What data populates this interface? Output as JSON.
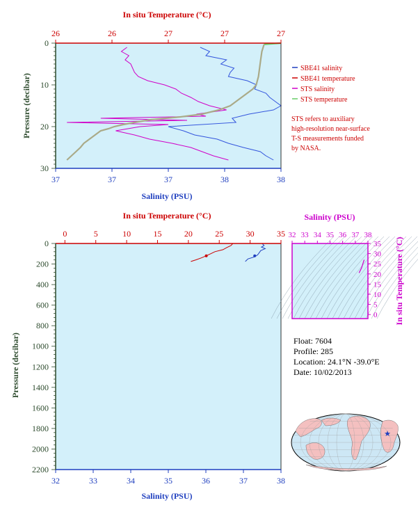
{
  "chart_data": [
    {
      "type": "line",
      "top_axis_title": "In situ Temperature (°C)",
      "top_ticks": [
        "26",
        "26",
        "27",
        "27",
        "27"
      ],
      "bottom_axis_title": "Salinity (PSU)",
      "bottom_ticks": [
        "37",
        "37",
        "37",
        "38",
        "38"
      ],
      "ylabel": "Pressure (decibar)",
      "y_ticks": [
        "0",
        "10",
        "20",
        "30"
      ],
      "ylim": [
        30,
        0
      ],
      "salinity_range": [
        36.8,
        38.0
      ],
      "temperature_range": [
        25.8,
        27.8
      ],
      "legend": [
        {
          "name": "SBE41 salinity",
          "color": "#1f3fbf"
        },
        {
          "name": "SBE41 temperature",
          "color": "#cc0000"
        },
        {
          "name": "STS salinity",
          "color": "#d000c8"
        },
        {
          "name": "STS temperature",
          "color": "#66cc66"
        }
      ],
      "note": [
        "STS refers to auxiliary",
        "high-resolution near-surface",
        "T-S measurements funded",
        "by NASA."
      ],
      "series": [
        {
          "name": "SBE41 salinity",
          "color": "#3355dd",
          "pressure": [
            1,
            2,
            3,
            4,
            5,
            6,
            7,
            8,
            9,
            10,
            11,
            12,
            13,
            14,
            15,
            16,
            17,
            18,
            19,
            20,
            21,
            22,
            23,
            24,
            25,
            26,
            27,
            28
          ],
          "values": [
            37.57,
            37.62,
            37.6,
            37.71,
            37.68,
            37.75,
            37.73,
            37.72,
            37.82,
            37.87,
            37.86,
            37.92,
            37.94,
            37.97,
            38.0,
            37.96,
            37.83,
            37.74,
            37.76,
            37.4,
            37.48,
            37.54,
            37.66,
            37.72,
            37.8,
            37.89,
            37.92,
            37.96
          ]
        },
        {
          "name": "STS salinity",
          "color": "#d000c8",
          "pressure": [
            1,
            2,
            3,
            4,
            5,
            6,
            7,
            8,
            9,
            10,
            11,
            12,
            13,
            14,
            15,
            16,
            17,
            17.5,
            18,
            18.5,
            19,
            19.5,
            20,
            21,
            22,
            23,
            24,
            25,
            26,
            27,
            28
          ],
          "values": [
            37.18,
            37.15,
            37.19,
            37.17,
            37.2,
            37.21,
            37.22,
            37.24,
            37.29,
            37.38,
            37.44,
            37.47,
            37.52,
            37.56,
            37.62,
            37.71,
            37.55,
            37.6,
            37.04,
            37.5,
            36.86,
            37.4,
            37.25,
            37.12,
            37.22,
            37.3,
            37.42,
            37.52,
            37.58,
            37.64,
            37.72
          ]
        },
        {
          "name": "STS temperature",
          "color": "#66cc66",
          "pressure": [
            0,
            0.3
          ],
          "values": [
            27.8,
            27.65
          ]
        },
        {
          "name": "SBE41 temperature",
          "color": "#aaaa88",
          "pressure": [
            0.3,
            2,
            4,
            6,
            8,
            10,
            11,
            12,
            13,
            14,
            15,
            16,
            17,
            17.7,
            18.3,
            19,
            19.5,
            20,
            20.5,
            21,
            22,
            23,
            24,
            25,
            26,
            27,
            28
          ],
          "values": [
            27.65,
            27.63,
            27.62,
            27.61,
            27.6,
            27.58,
            27.55,
            27.5,
            27.45,
            27.4,
            27.35,
            27.25,
            27.1,
            26.9,
            26.65,
            26.5,
            26.4,
            26.32,
            26.27,
            26.2,
            26.15,
            26.1,
            26.05,
            26.02,
            25.98,
            25.94,
            25.9
          ]
        }
      ]
    },
    {
      "type": "line",
      "top_axis_title": "In situ Temperature (°C)",
      "top_ticks": [
        "0",
        "5",
        "10",
        "15",
        "20",
        "25",
        "30",
        "35"
      ],
      "bottom_axis_title": "Salinity (PSU)",
      "bottom_ticks": [
        "32",
        "33",
        "34",
        "35",
        "36",
        "37",
        "38"
      ],
      "ylabel": "Pressure (decibar)",
      "y_ticks": [
        "0",
        "200",
        "400",
        "600",
        "800",
        "1000",
        "1200",
        "1400",
        "1600",
        "1800",
        "2000",
        "2200"
      ],
      "ylim": [
        2200,
        0
      ],
      "xlim_temperature": [
        -1.5,
        35
      ],
      "xlim_salinity": [
        32,
        38
      ],
      "series": [
        {
          "name": "temperature",
          "color": "#cc0000",
          "pressure": [
            0,
            20,
            40,
            60,
            80,
            100,
            120,
            140,
            160,
            175
          ],
          "values": [
            27.2,
            26.9,
            26.2,
            25.6,
            24.3,
            23.6,
            22.9,
            22.1,
            21.2,
            20.4
          ]
        },
        {
          "name": "salinity",
          "color": "#1f3fbf",
          "pressure": [
            0,
            20,
            35,
            50,
            70,
            90,
            110,
            130,
            150,
            175
          ],
          "values": [
            37.5,
            37.55,
            37.48,
            37.58,
            37.46,
            37.42,
            37.38,
            37.3,
            37.12,
            37.05
          ]
        }
      ],
      "markers": [
        {
          "series": "temperature",
          "pressure": 120
        },
        {
          "series": "salinity",
          "pressure": 120
        }
      ]
    },
    {
      "type": "scatter",
      "title": "Salinity (PSU)",
      "top_ticks": [
        "32",
        "33",
        "34",
        "35",
        "36",
        "37",
        "38"
      ],
      "right_axis_title": "In situ Temperature (°C)",
      "right_ticks": [
        "0",
        "5",
        "10",
        "15",
        "20",
        "25",
        "30",
        "35"
      ],
      "xlim": [
        32,
        38
      ],
      "ylim": [
        -2,
        35
      ],
      "ts_curve": {
        "salinity": [
          37.3,
          37.5,
          37.6,
          37.7
        ],
        "temperature": [
          20.5,
          23.0,
          25.0,
          27.0
        ],
        "color": "#d000c8"
      }
    }
  ],
  "float_info": {
    "float": "Float:  7604",
    "profile": "Profile:  285",
    "location": "Location:  24.1°N  -39.0°E",
    "date": "Date:  10/02/2013"
  },
  "colors": {
    "plot_bg": "#d3f0fa",
    "temp_axis": "#cc0000",
    "sal_axis": "#1f3fbf",
    "pressure_axis": "#2c4a2c",
    "ts_axis": "#cc00cc",
    "map_land": "#f4c0c0",
    "map_ocean": "#cde7f5",
    "float_marker": "#1f3fbf"
  }
}
